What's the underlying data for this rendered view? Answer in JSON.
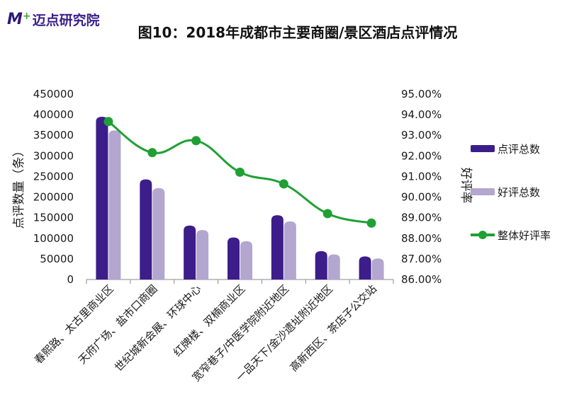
{
  "logo": {
    "text": "迈点研究院",
    "mark": "M"
  },
  "colors": {
    "bar1": "#3c1d8a",
    "bar2": "#b3a6cf",
    "line": "#1fa034",
    "axis": "#888888"
  },
  "chart_data": {
    "type": "bar",
    "title": "图10：2018年成都市主要商圈/景区酒店点评情况",
    "ylabel": "点评数量（条）",
    "y2label": "好评率",
    "ylim": [
      0,
      450000
    ],
    "y2lim": [
      0.86,
      0.95
    ],
    "yticks": [
      "450000",
      "400000",
      "350000",
      "300000",
      "250000",
      "200000",
      "150000",
      "100000",
      "50000",
      "0"
    ],
    "y2ticks": [
      "95.00%",
      "94.00%",
      "93.00%",
      "92.00%",
      "91.00%",
      "90.00%",
      "89.00%",
      "88.00%",
      "87.00%",
      "86.00%"
    ],
    "legend_position": "right",
    "categories": [
      "春熙路、太古里商业区",
      "天府广场、盐市口商圈",
      "世纪城新会展、环球中心",
      "红牌楼、双楠商业区",
      "宽窄巷子/中医学院附近地区",
      "一品天下/金沙遗址附近地区",
      "高新西区、茶店子公交站"
    ],
    "series": [
      {
        "name": "点评总数",
        "kind": "bar",
        "values": [
          395000,
          243000,
          131000,
          102000,
          156000,
          69000,
          56000
        ]
      },
      {
        "name": "好评总数",
        "kind": "bar",
        "values": [
          362000,
          222000,
          120000,
          93000,
          141000,
          61000,
          51000
        ]
      },
      {
        "name": "整体好评率",
        "kind": "line",
        "axis": "right",
        "values": [
          0.9367,
          0.9216,
          0.9274,
          0.9121,
          0.9064,
          0.892,
          0.8874
        ]
      }
    ]
  }
}
